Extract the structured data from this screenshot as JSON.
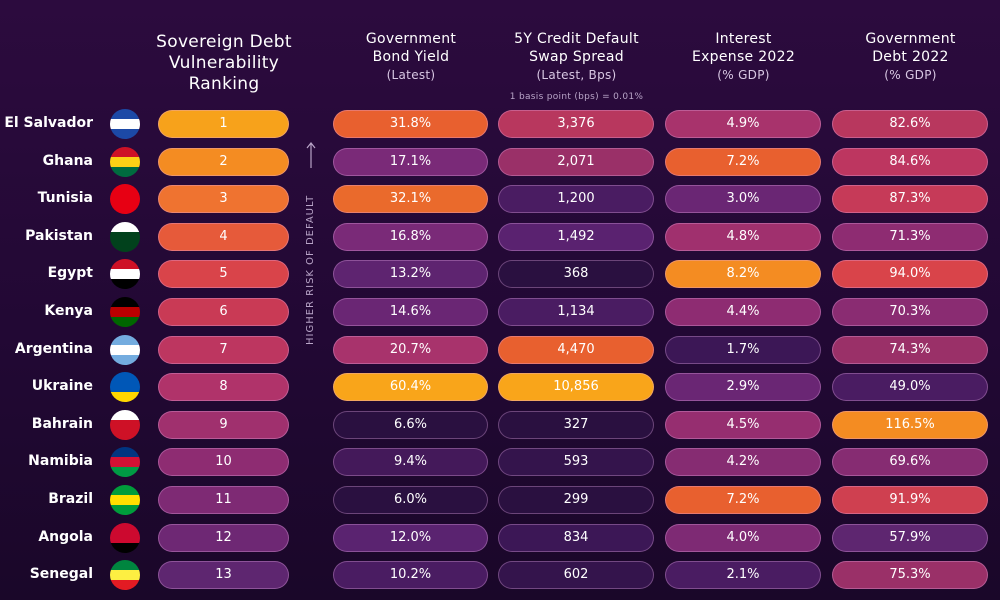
{
  "columns": [
    {
      "title_lines": [
        "Sovereign Debt",
        "Vulnerability",
        "Ranking"
      ]
    },
    {
      "title_lines": [
        "Government",
        "Bond Yield"
      ],
      "subtitle": "(Latest)"
    },
    {
      "title_lines": [
        "5Y Credit Default",
        "Swap Spread"
      ],
      "subtitle": "(Latest, Bps)",
      "note": "1 basis point (bps) = 0.01%"
    },
    {
      "title_lines": [
        "Interest",
        "Expense 2022"
      ],
      "subtitle": "(% GDP)"
    },
    {
      "title_lines": [
        "Government",
        "Debt 2022"
      ],
      "subtitle": "(% GDP)"
    }
  ],
  "side_label": "HIGHER RISK OF DEFAULT",
  "rows": [
    {
      "country": "El Salvador",
      "cells": [
        {
          "text": "1",
          "color": "#f7a21b"
        },
        {
          "text": "31.8%",
          "color": "#e8602f"
        },
        {
          "text": "3,376",
          "color": "#b8375e"
        },
        {
          "text": "4.9%",
          "color": "#a8336c"
        },
        {
          "text": "82.6%",
          "color": "#b8375e"
        }
      ]
    },
    {
      "country": "Ghana",
      "cells": [
        {
          "text": "2",
          "color": "#f48c22"
        },
        {
          "text": "17.1%",
          "color": "#7a2a78"
        },
        {
          "text": "2,071",
          "color": "#9a3068"
        },
        {
          "text": "7.2%",
          "color": "#e8602f"
        },
        {
          "text": "84.6%",
          "color": "#bd3660"
        }
      ]
    },
    {
      "country": "Tunisia",
      "cells": [
        {
          "text": "3",
          "color": "#ef7330"
        },
        {
          "text": "32.1%",
          "color": "#ea6a2c"
        },
        {
          "text": "1,200",
          "color": "#4a1c62"
        },
        {
          "text": "3.0%",
          "color": "#6a2674"
        },
        {
          "text": "87.3%",
          "color": "#c63a58"
        }
      ]
    },
    {
      "country": "Pakistan",
      "cells": [
        {
          "text": "4",
          "color": "#e65a3a"
        },
        {
          "text": "16.8%",
          "color": "#7a2a78"
        },
        {
          "text": "1,492",
          "color": "#5a2270"
        },
        {
          "text": "4.8%",
          "color": "#a0306e"
        },
        {
          "text": "71.3%",
          "color": "#8e2c72"
        }
      ]
    },
    {
      "country": "Egypt",
      "cells": [
        {
          "text": "5",
          "color": "#d9444a"
        },
        {
          "text": "13.2%",
          "color": "#5e2470"
        },
        {
          "text": "368",
          "color": "#2a1040"
        },
        {
          "text": "8.2%",
          "color": "#f48c22"
        },
        {
          "text": "94.0%",
          "color": "#d9444a"
        }
      ]
    },
    {
      "country": "Kenya",
      "cells": [
        {
          "text": "6",
          "color": "#c93a55"
        },
        {
          "text": "14.6%",
          "color": "#6a2674"
        },
        {
          "text": "1,134",
          "color": "#4a1c62"
        },
        {
          "text": "4.4%",
          "color": "#8e2c72"
        },
        {
          "text": "70.3%",
          "color": "#8a2c72"
        }
      ]
    },
    {
      "country": "Argentina",
      "cells": [
        {
          "text": "7",
          "color": "#bd3660"
        },
        {
          "text": "20.7%",
          "color": "#a8336c"
        },
        {
          "text": "4,470",
          "color": "#e8602f"
        },
        {
          "text": "1.7%",
          "color": "#3c1756"
        },
        {
          "text": "74.3%",
          "color": "#9a3068"
        }
      ]
    },
    {
      "country": "Ukraine",
      "cells": [
        {
          "text": "8",
          "color": "#b0336a"
        },
        {
          "text": "60.4%",
          "color": "#f9a51a"
        },
        {
          "text": "10,856",
          "color": "#f9a51a"
        },
        {
          "text": "2.9%",
          "color": "#6a2674"
        },
        {
          "text": "49.0%",
          "color": "#4a1c62"
        }
      ]
    },
    {
      "country": "Bahrain",
      "cells": [
        {
          "text": "9",
          "color": "#a0306e"
        },
        {
          "text": "6.6%",
          "color": "#2a1040"
        },
        {
          "text": "327",
          "color": "#2a1040"
        },
        {
          "text": "4.5%",
          "color": "#962e70"
        },
        {
          "text": "116.5%",
          "color": "#f48c22"
        }
      ]
    },
    {
      "country": "Namibia",
      "cells": [
        {
          "text": "10",
          "color": "#8e2c72"
        },
        {
          "text": "9.4%",
          "color": "#44195a"
        },
        {
          "text": "593",
          "color": "#34144c"
        },
        {
          "text": "4.2%",
          "color": "#862c72"
        },
        {
          "text": "69.6%",
          "color": "#862c72"
        }
      ]
    },
    {
      "country": "Brazil",
      "cells": [
        {
          "text": "11",
          "color": "#7e2a74"
        },
        {
          "text": "6.0%",
          "color": "#2a1040"
        },
        {
          "text": "299",
          "color": "#2a1040"
        },
        {
          "text": "7.2%",
          "color": "#e8602f"
        },
        {
          "text": "91.9%",
          "color": "#cf4050"
        }
      ]
    },
    {
      "country": "Angola",
      "cells": [
        {
          "text": "12",
          "color": "#6e2874"
        },
        {
          "text": "12.0%",
          "color": "#5a2370"
        },
        {
          "text": "834",
          "color": "#3c1756"
        },
        {
          "text": "4.0%",
          "color": "#7e2a74"
        },
        {
          "text": "57.9%",
          "color": "#5e2670"
        }
      ]
    },
    {
      "country": "Senegal",
      "cells": [
        {
          "text": "13",
          "color": "#5e2670"
        },
        {
          "text": "10.2%",
          "color": "#4a1c62"
        },
        {
          "text": "602",
          "color": "#34144c"
        },
        {
          "text": "2.1%",
          "color": "#4a1c62"
        },
        {
          "text": "75.3%",
          "color": "#9a3068"
        }
      ]
    }
  ]
}
